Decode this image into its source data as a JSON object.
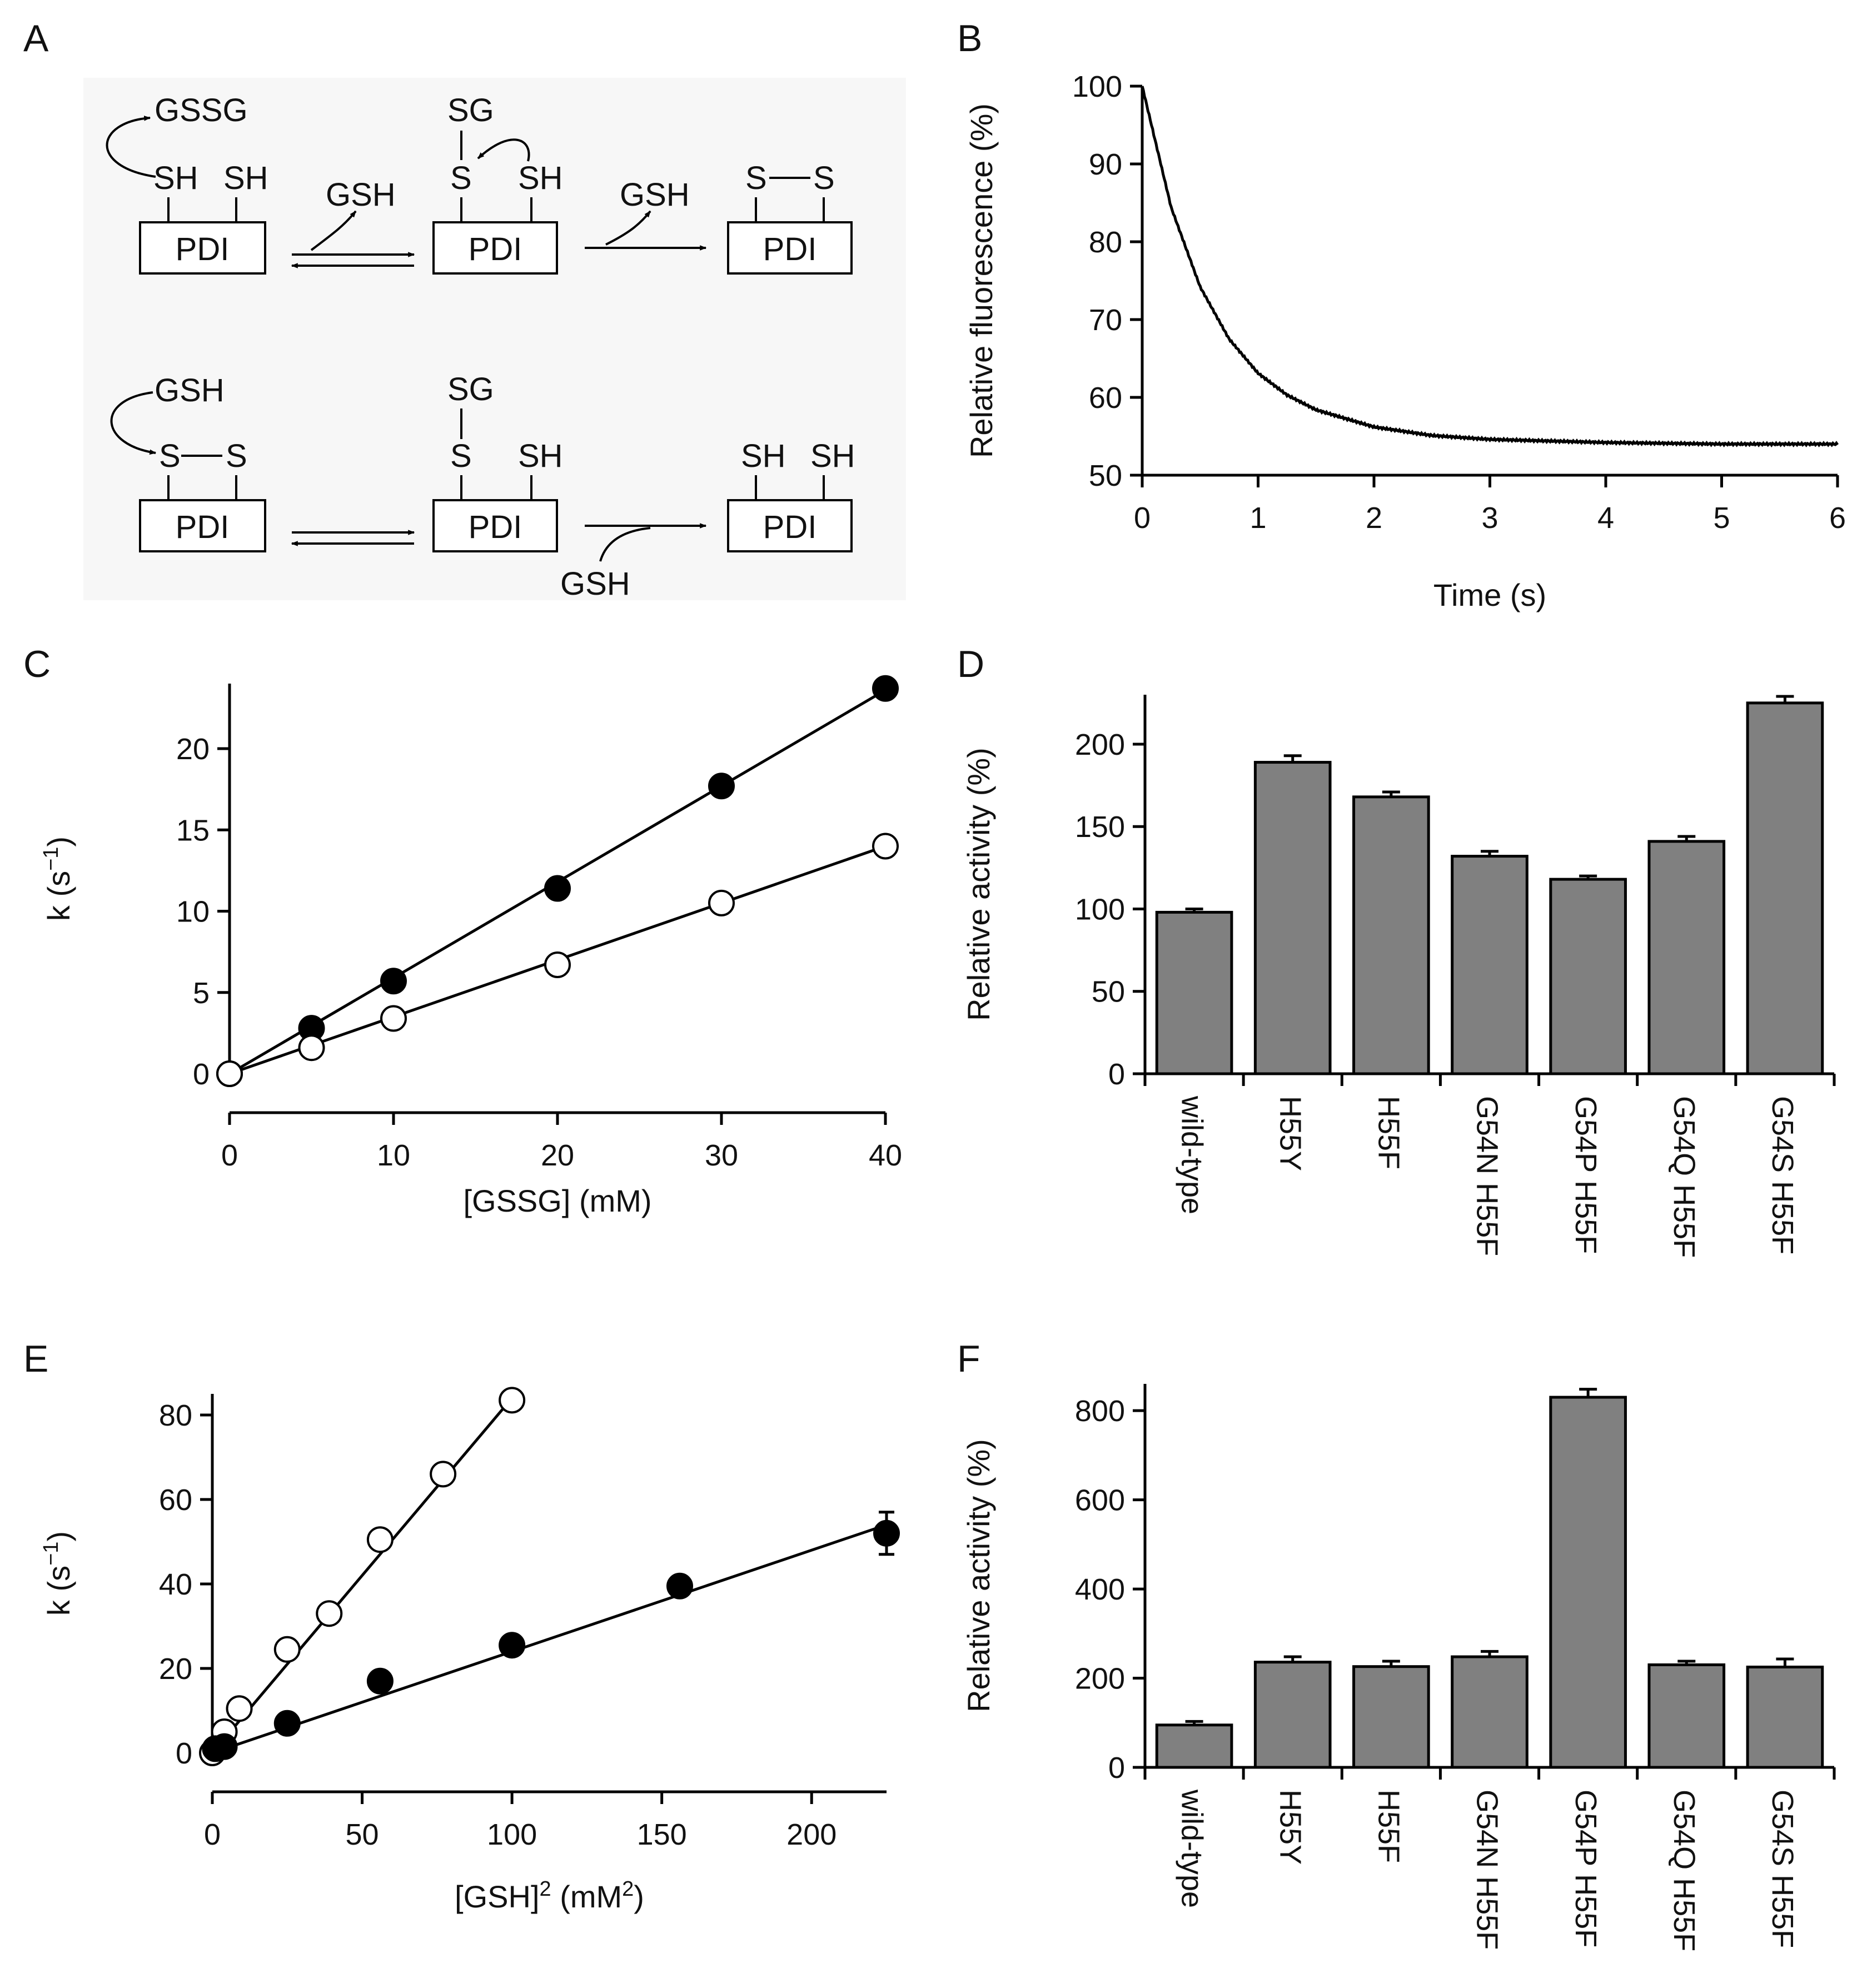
{
  "panels": {
    "A": {
      "label": "A",
      "oxidation": {
        "reagent": "GSSG",
        "released1": "GSH",
        "released2": "GSH",
        "pdi_labels": [
          "PDI",
          "PDI",
          "PDI"
        ],
        "state1_groups": [
          "SH",
          "SH"
        ],
        "state2_groups": [
          "S",
          "SH"
        ],
        "state2_mixed": "SG",
        "state3_groups": [
          "S",
          "S"
        ]
      },
      "reduction": {
        "reagent": "GSH",
        "second_reagent": "GSH",
        "pdi_labels": [
          "PDI",
          "PDI",
          "PDI"
        ],
        "state1_groups": [
          "S",
          "S"
        ],
        "state2_groups": [
          "S",
          "SH"
        ],
        "state2_mixed": "SG",
        "state3_groups": [
          "SH",
          "SH"
        ]
      }
    },
    "B": {
      "label": "B"
    },
    "C": {
      "label": "C"
    },
    "D": {
      "label": "D"
    },
    "E": {
      "label": "E"
    },
    "F": {
      "label": "F"
    }
  },
  "chart_data": [
    {
      "panel": "B",
      "type": "line",
      "title": "",
      "xlabel": "Time (s)",
      "ylabel": "Relative fluorescence (%)",
      "xlim": [
        0,
        6
      ],
      "ylim": [
        50,
        100
      ],
      "xticks": [
        0,
        1,
        2,
        3,
        4,
        5,
        6
      ],
      "yticks": [
        50,
        60,
        70,
        80,
        90,
        100
      ],
      "series": [
        {
          "name": "fluorescence trace",
          "model": "single exponential decay",
          "x": [
            0,
            0.25,
            0.5,
            0.75,
            1.0,
            1.25,
            1.5,
            2.0,
            2.5,
            3.0,
            4.0,
            5.0,
            6.0
          ],
          "y": [
            100,
            84.4,
            74.2,
            67.5,
            63.1,
            60.3,
            58.4,
            56.2,
            55.1,
            54.6,
            54.2,
            54.0,
            54.0
          ]
        }
      ]
    },
    {
      "panel": "C",
      "type": "scatter",
      "title": "",
      "xlabel": "[GSSG] (mM)",
      "ylabel": "k (s⁻¹)",
      "ylabel_parts": [
        "k (s",
        "−1",
        ")"
      ],
      "xlim": [
        0,
        40
      ],
      "ylim": [
        0,
        24
      ],
      "xticks": [
        0,
        10,
        20,
        30,
        40
      ],
      "yticks": [
        0,
        5,
        10,
        15,
        20
      ],
      "series": [
        {
          "name": "filled",
          "marker": "filled-circle",
          "x": [
            0,
            5,
            10,
            20,
            30,
            40
          ],
          "y": [
            0,
            2.8,
            5.7,
            11.4,
            17.7,
            23.7
          ],
          "fit_slope": 0.59
        },
        {
          "name": "open",
          "marker": "open-circle",
          "x": [
            0,
            5,
            10,
            20,
            30,
            40
          ],
          "y": [
            0,
            1.6,
            3.4,
            6.7,
            10.5,
            14.0
          ],
          "fit_slope": 0.35
        }
      ]
    },
    {
      "panel": "D",
      "type": "bar",
      "title": "",
      "xlabel": "",
      "ylabel": "Relative activity (%)",
      "ylim": [
        0,
        230
      ],
      "yticks": [
        0,
        50,
        100,
        150,
        200
      ],
      "categories": [
        "wild-type",
        "H55Y",
        "H55F",
        "G54N H55F",
        "G54P H55F",
        "G54Q H55F",
        "G54S H55F"
      ],
      "values": [
        98,
        189,
        168,
        132,
        118,
        141,
        225
      ],
      "errors": [
        2,
        4,
        3,
        3,
        2,
        3,
        4
      ]
    },
    {
      "panel": "E",
      "type": "scatter",
      "title": "",
      "xlabel": "[GSH]² (mM²)",
      "xlabel_parts": [
        "[GSH]",
        "2",
        " (mM",
        "2",
        ")"
      ],
      "ylabel": "k (s⁻¹)",
      "ylabel_parts": [
        "k (s",
        "−1",
        ")"
      ],
      "xlim": [
        0,
        225
      ],
      "ylim": [
        0,
        85
      ],
      "xticks": [
        0,
        50,
        100,
        150,
        200
      ],
      "yticks": [
        0,
        20,
        40,
        60,
        80
      ],
      "series": [
        {
          "name": "open",
          "marker": "open-circle",
          "x": [
            0,
            4,
            9,
            25,
            39,
            56,
            77,
            100
          ],
          "y": [
            0,
            5,
            10.5,
            24.5,
            33,
            50.5,
            66,
            83.5
          ],
          "fit_slope": 0.84
        },
        {
          "name": "filled",
          "marker": "filled-circle",
          "x": [
            1,
            4,
            25,
            56,
            100,
            156,
            225
          ],
          "y": [
            1,
            1.5,
            7,
            17,
            25.5,
            39.5,
            52
          ],
          "errors": [
            0,
            0,
            0,
            0,
            0,
            0,
            5
          ],
          "fit_slope": 0.24
        }
      ]
    },
    {
      "panel": "F",
      "type": "bar",
      "title": "",
      "xlabel": "",
      "ylabel": "Relative activity (%)",
      "ylim": [
        0,
        860
      ],
      "yticks": [
        0,
        200,
        400,
        600,
        800
      ],
      "categories": [
        "wild-type",
        "H55Y",
        "H55F",
        "G54N H55F",
        "G54P H55F",
        "G54Q H55F",
        "G54S H55F"
      ],
      "values": [
        95,
        236,
        226,
        248,
        830,
        230,
        225
      ],
      "errors": [
        8,
        12,
        12,
        12,
        18,
        8,
        18
      ]
    }
  ]
}
